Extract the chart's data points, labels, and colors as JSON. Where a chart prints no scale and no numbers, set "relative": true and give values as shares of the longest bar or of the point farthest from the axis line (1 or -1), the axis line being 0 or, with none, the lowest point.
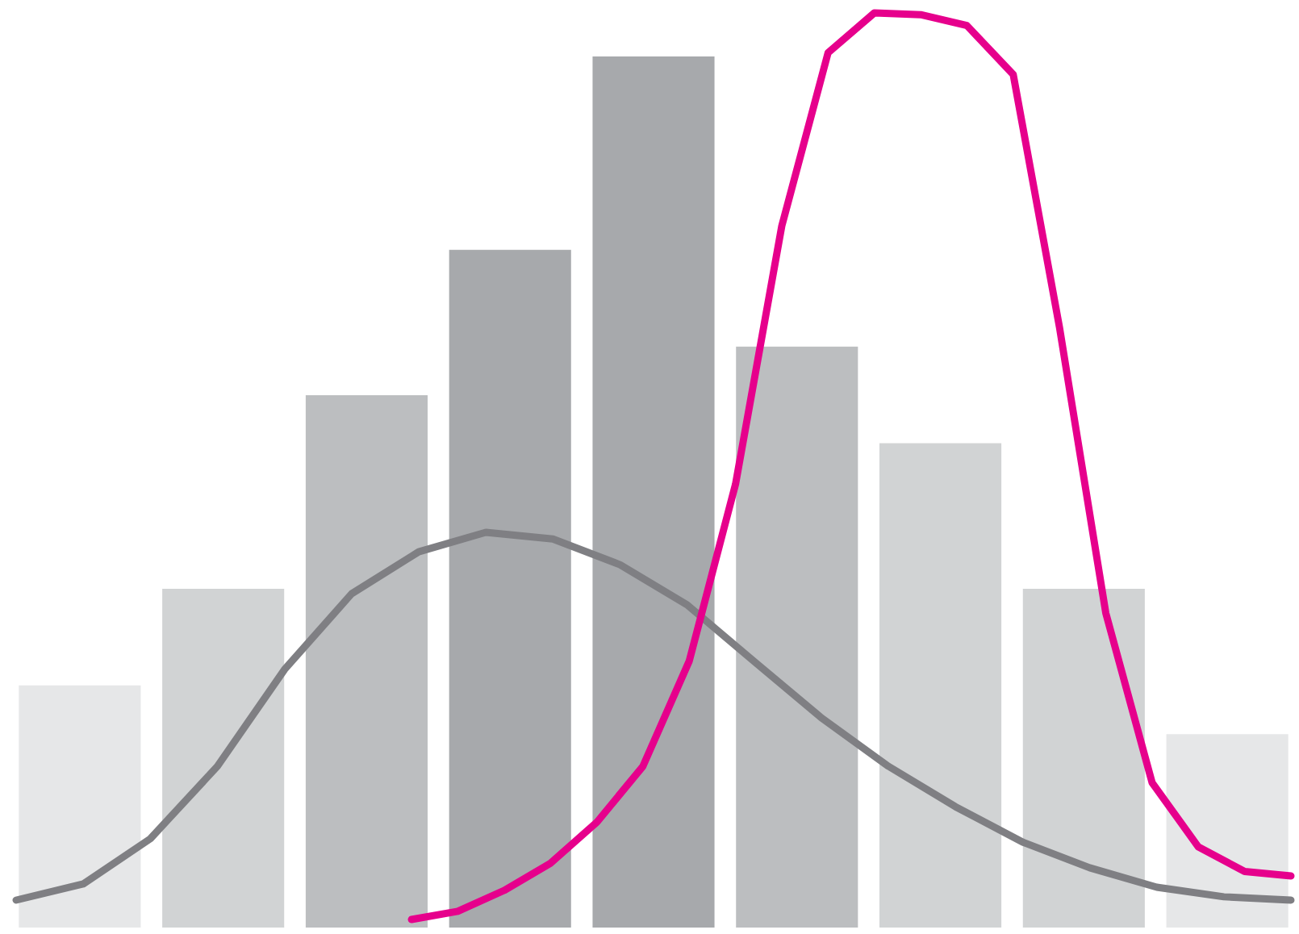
{
  "chart_data": [
    {
      "type": "bar",
      "relative": true,
      "categories": [
        null,
        null,
        null,
        null,
        null,
        null,
        null,
        null,
        null
      ],
      "colors": [
        "#e6e7e8",
        "#d1d3d4",
        "#bcbec0",
        "#a7a9ac",
        "#a7a9ac",
        "#bcbec0",
        "#d1d3d4",
        "#d1d3d4",
        "#e6e7e8"
      ],
      "values": [
        0.278,
        0.389,
        0.611,
        0.778,
        1,
        0.667,
        0.556,
        0.389,
        0.222
      ]
    },
    {
      "type": "line",
      "relative": true,
      "categories": [
        null,
        null,
        null,
        null,
        null,
        null,
        null,
        null,
        null,
        null,
        null,
        null,
        null,
        null,
        null,
        null,
        null,
        null,
        null,
        null
      ],
      "series": [
        {
          "color": "#7f7f83",
          "values": [
            0,
            0.044,
            0.167,
            0.364,
            0.627,
            0.833,
            0.947,
            1,
            0.982,
            0.912,
            0.803,
            0.649,
            0.496,
            0.364,
            0.254,
            0.158,
            0.088,
            0.035,
            0.009,
            0
          ]
        }
      ]
    },
    {
      "type": "line",
      "relative": true,
      "categories": [
        null,
        null,
        null,
        null,
        null,
        null,
        null,
        null,
        null,
        null,
        null,
        null,
        null,
        null,
        null,
        null,
        null,
        null,
        null,
        null
      ],
      "series": [
        {
          "color": "#e6008c",
          "values": [
            0,
            0.009,
            0.032,
            0.062,
            0.107,
            0.169,
            0.285,
            0.48,
            0.765,
            0.956,
            1,
            0.998,
            0.986,
            0.932,
            0.653,
            0.338,
            0.151,
            0.08,
            0.053,
            0.048
          ]
        }
      ]
    }
  ]
}
